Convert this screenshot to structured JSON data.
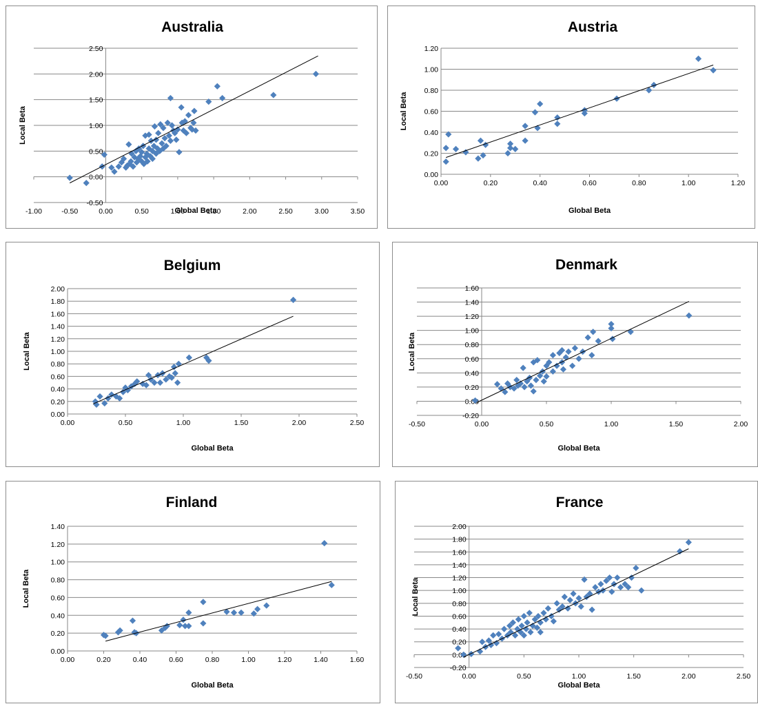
{
  "marker_color": "#4f81bd",
  "chart_data": [
    {
      "type": "scatter",
      "title": "Australia",
      "xlabel": "Global Beta",
      "ylabel": "Local Beta",
      "xlim": [
        -1.0,
        3.5
      ],
      "ylim": [
        -0.5,
        2.5
      ],
      "x_ticks": [
        "-1.00",
        "-0.50",
        "0.00",
        "0.50",
        "1.00",
        "1.50",
        "2.00",
        "2.50",
        "3.00",
        "3.50"
      ],
      "y_ticks": [
        "-0.50",
        "0.00",
        "0.50",
        "1.00",
        "1.50",
        "2.00",
        "2.50"
      ],
      "trendline": [
        [
          -0.5,
          -0.12
        ],
        [
          2.95,
          2.35
        ]
      ],
      "points": [
        [
          -0.5,
          -0.02
        ],
        [
          -0.27,
          -0.12
        ],
        [
          -0.05,
          0.2
        ],
        [
          -0.02,
          0.43
        ],
        [
          0.08,
          0.18
        ],
        [
          0.12,
          0.1
        ],
        [
          0.18,
          0.2
        ],
        [
          0.22,
          0.28
        ],
        [
          0.25,
          0.35
        ],
        [
          0.28,
          0.18
        ],
        [
          0.3,
          0.22
        ],
        [
          0.32,
          0.63
        ],
        [
          0.33,
          0.25
        ],
        [
          0.35,
          0.3
        ],
        [
          0.36,
          0.45
        ],
        [
          0.38,
          0.2
        ],
        [
          0.4,
          0.38
        ],
        [
          0.42,
          0.5
        ],
        [
          0.43,
          0.28
        ],
        [
          0.45,
          0.35
        ],
        [
          0.46,
          0.55
        ],
        [
          0.48,
          0.4
        ],
        [
          0.5,
          0.3
        ],
        [
          0.5,
          0.48
        ],
        [
          0.52,
          0.6
        ],
        [
          0.53,
          0.25
        ],
        [
          0.55,
          0.38
        ],
        [
          0.55,
          0.8
        ],
        [
          0.57,
          0.45
        ],
        [
          0.58,
          0.3
        ],
        [
          0.6,
          0.55
        ],
        [
          0.6,
          0.82
        ],
        [
          0.62,
          0.4
        ],
        [
          0.63,
          0.7
        ],
        [
          0.65,
          0.5
        ],
        [
          0.65,
          0.35
        ],
        [
          0.67,
          0.6
        ],
        [
          0.68,
          0.98
        ],
        [
          0.7,
          0.45
        ],
        [
          0.7,
          0.72
        ],
        [
          0.72,
          0.55
        ],
        [
          0.73,
          0.85
        ],
        [
          0.75,
          0.5
        ],
        [
          0.76,
          1.02
        ],
        [
          0.78,
          0.65
        ],
        [
          0.8,
          0.95
        ],
        [
          0.8,
          0.55
        ],
        [
          0.82,
          0.75
        ],
        [
          0.84,
          0.6
        ],
        [
          0.86,
          1.05
        ],
        [
          0.88,
          0.8
        ],
        [
          0.9,
          0.7
        ],
        [
          0.9,
          1.53
        ],
        [
          0.92,
          1.0
        ],
        [
          0.94,
          0.9
        ],
        [
          0.96,
          0.85
        ],
        [
          0.98,
          0.72
        ],
        [
          1.0,
          0.92
        ],
        [
          1.02,
          0.48
        ],
        [
          1.05,
          1.35
        ],
        [
          1.06,
          1.05
        ],
        [
          1.08,
          0.9
        ],
        [
          1.1,
          1.08
        ],
        [
          1.12,
          0.85
        ],
        [
          1.15,
          1.2
        ],
        [
          1.18,
          0.95
        ],
        [
          1.2,
          0.92
        ],
        [
          1.22,
          1.05
        ],
        [
          1.23,
          1.28
        ],
        [
          1.25,
          0.9
        ],
        [
          1.43,
          1.46
        ],
        [
          1.55,
          1.76
        ],
        [
          1.62,
          1.53
        ],
        [
          2.33,
          1.59
        ],
        [
          2.92,
          2.0
        ]
      ]
    },
    {
      "type": "scatter",
      "title": "Austria",
      "xlabel": "Global Beta",
      "ylabel": "Local Beta",
      "xlim": [
        0.0,
        1.2
      ],
      "ylim": [
        0.0,
        1.2
      ],
      "x_ticks": [
        "0.00",
        "0.20",
        "0.40",
        "0.60",
        "0.80",
        "1.00",
        "1.20"
      ],
      "y_ticks": [
        "0.00",
        "0.20",
        "0.40",
        "0.60",
        "0.80",
        "1.00",
        "1.20"
      ],
      "trendline": [
        [
          0.02,
          0.16
        ],
        [
          1.1,
          1.04
        ]
      ],
      "points": [
        [
          0.02,
          0.12
        ],
        [
          0.02,
          0.25
        ],
        [
          0.03,
          0.38
        ],
        [
          0.06,
          0.24
        ],
        [
          0.1,
          0.21
        ],
        [
          0.15,
          0.15
        ],
        [
          0.16,
          0.32
        ],
        [
          0.17,
          0.18
        ],
        [
          0.18,
          0.28
        ],
        [
          0.27,
          0.2
        ],
        [
          0.28,
          0.25
        ],
        [
          0.28,
          0.29
        ],
        [
          0.3,
          0.24
        ],
        [
          0.34,
          0.32
        ],
        [
          0.34,
          0.46
        ],
        [
          0.38,
          0.59
        ],
        [
          0.39,
          0.44
        ],
        [
          0.4,
          0.67
        ],
        [
          0.47,
          0.48
        ],
        [
          0.47,
          0.54
        ],
        [
          0.58,
          0.58
        ],
        [
          0.58,
          0.61
        ],
        [
          0.71,
          0.72
        ],
        [
          0.84,
          0.8
        ],
        [
          0.86,
          0.85
        ],
        [
          1.04,
          1.1
        ],
        [
          1.1,
          0.99
        ]
      ]
    },
    {
      "type": "scatter",
      "title": "Belgium",
      "xlabel": "Global Beta",
      "ylabel": "Local Beta",
      "xlim": [
        0.0,
        2.5
      ],
      "ylim": [
        0.0,
        2.0
      ],
      "x_ticks": [
        "0.00",
        "0.50",
        "1.00",
        "1.50",
        "2.00",
        "2.50"
      ],
      "y_ticks": [
        "0.00",
        "0.20",
        "0.40",
        "0.60",
        "0.80",
        "1.00",
        "1.20",
        "1.40",
        "1.60",
        "1.80",
        "2.00"
      ],
      "trendline": [
        [
          0.22,
          0.16
        ],
        [
          1.95,
          1.56
        ]
      ],
      "points": [
        [
          0.24,
          0.2
        ],
        [
          0.25,
          0.15
        ],
        [
          0.28,
          0.28
        ],
        [
          0.32,
          0.17
        ],
        [
          0.35,
          0.25
        ],
        [
          0.38,
          0.31
        ],
        [
          0.42,
          0.28
        ],
        [
          0.45,
          0.25
        ],
        [
          0.48,
          0.35
        ],
        [
          0.5,
          0.42
        ],
        [
          0.52,
          0.38
        ],
        [
          0.55,
          0.44
        ],
        [
          0.58,
          0.48
        ],
        [
          0.6,
          0.52
        ],
        [
          0.65,
          0.48
        ],
        [
          0.68,
          0.46
        ],
        [
          0.7,
          0.62
        ],
        [
          0.72,
          0.55
        ],
        [
          0.75,
          0.5
        ],
        [
          0.78,
          0.62
        ],
        [
          0.8,
          0.5
        ],
        [
          0.82,
          0.65
        ],
        [
          0.85,
          0.55
        ],
        [
          0.88,
          0.6
        ],
        [
          0.9,
          0.58
        ],
        [
          0.92,
          0.75
        ],
        [
          0.93,
          0.65
        ],
        [
          0.95,
          0.5
        ],
        [
          0.96,
          0.8
        ],
        [
          1.05,
          0.9
        ],
        [
          1.2,
          0.9
        ],
        [
          1.22,
          0.85
        ],
        [
          1.95,
          1.82
        ]
      ]
    },
    {
      "type": "scatter",
      "title": "Denmark",
      "xlabel": "Global Beta",
      "ylabel": "Local Beta",
      "xlim": [
        -0.5,
        2.0
      ],
      "ylim": [
        -0.2,
        1.6
      ],
      "x_ticks": [
        "-0.50",
        "0.00",
        "0.50",
        "1.00",
        "1.50",
        "2.00"
      ],
      "y_ticks": [
        "-0.20",
        "0.00",
        "0.20",
        "0.40",
        "0.60",
        "0.80",
        "1.00",
        "1.20",
        "1.40",
        "1.60"
      ],
      "trendline": [
        [
          -0.04,
          -0.02
        ],
        [
          1.6,
          1.41
        ]
      ],
      "points": [
        [
          -0.05,
          0.01
        ],
        [
          0.12,
          0.24
        ],
        [
          0.15,
          0.18
        ],
        [
          0.18,
          0.13
        ],
        [
          0.2,
          0.25
        ],
        [
          0.22,
          0.2
        ],
        [
          0.25,
          0.18
        ],
        [
          0.27,
          0.3
        ],
        [
          0.28,
          0.22
        ],
        [
          0.3,
          0.25
        ],
        [
          0.32,
          0.47
        ],
        [
          0.33,
          0.2
        ],
        [
          0.35,
          0.28
        ],
        [
          0.37,
          0.33
        ],
        [
          0.38,
          0.22
        ],
        [
          0.4,
          0.14
        ],
        [
          0.4,
          0.55
        ],
        [
          0.42,
          0.3
        ],
        [
          0.43,
          0.58
        ],
        [
          0.45,
          0.36
        ],
        [
          0.47,
          0.42
        ],
        [
          0.48,
          0.28
        ],
        [
          0.5,
          0.5
        ],
        [
          0.5,
          0.35
        ],
        [
          0.52,
          0.55
        ],
        [
          0.55,
          0.42
        ],
        [
          0.55,
          0.65
        ],
        [
          0.58,
          0.5
        ],
        [
          0.6,
          0.68
        ],
        [
          0.62,
          0.55
        ],
        [
          0.62,
          0.72
        ],
        [
          0.63,
          0.45
        ],
        [
          0.65,
          0.62
        ],
        [
          0.67,
          0.7
        ],
        [
          0.7,
          0.5
        ],
        [
          0.72,
          0.75
        ],
        [
          0.75,
          0.6
        ],
        [
          0.78,
          0.7
        ],
        [
          0.82,
          0.9
        ],
        [
          0.85,
          0.65
        ],
        [
          0.86,
          0.98
        ],
        [
          0.9,
          0.85
        ],
        [
          1.0,
          1.03
        ],
        [
          1.0,
          1.09
        ],
        [
          1.01,
          0.88
        ],
        [
          1.15,
          0.98
        ],
        [
          1.6,
          1.21
        ]
      ]
    },
    {
      "type": "scatter",
      "title": "Finland",
      "xlabel": "Global Beta",
      "ylabel": "Local Beta",
      "xlim": [
        0.0,
        1.6
      ],
      "ylim": [
        0.0,
        1.4
      ],
      "x_ticks": [
        "0.00",
        "0.20",
        "0.40",
        "0.60",
        "0.80",
        "1.00",
        "1.20",
        "1.40",
        "1.60"
      ],
      "y_ticks": [
        "0.00",
        "0.20",
        "0.40",
        "0.60",
        "0.80",
        "1.00",
        "1.20",
        "1.40"
      ],
      "trendline": [
        [
          0.21,
          0.11
        ],
        [
          1.46,
          0.78
        ]
      ],
      "points": [
        [
          0.2,
          0.18
        ],
        [
          0.21,
          0.17
        ],
        [
          0.28,
          0.21
        ],
        [
          0.29,
          0.23
        ],
        [
          0.36,
          0.34
        ],
        [
          0.37,
          0.21
        ],
        [
          0.38,
          0.2
        ],
        [
          0.52,
          0.23
        ],
        [
          0.54,
          0.26
        ],
        [
          0.55,
          0.28
        ],
        [
          0.62,
          0.29
        ],
        [
          0.64,
          0.35
        ],
        [
          0.65,
          0.28
        ],
        [
          0.67,
          0.43
        ],
        [
          0.67,
          0.28
        ],
        [
          0.75,
          0.55
        ],
        [
          0.75,
          0.31
        ],
        [
          0.88,
          0.44
        ],
        [
          0.92,
          0.43
        ],
        [
          0.96,
          0.43
        ],
        [
          1.03,
          0.42
        ],
        [
          1.05,
          0.47
        ],
        [
          1.1,
          0.51
        ],
        [
          1.42,
          1.21
        ],
        [
          1.46,
          0.74
        ]
      ]
    },
    {
      "type": "scatter",
      "title": "France",
      "xlabel": "Global Beta",
      "ylabel": "Local Beta",
      "xlim": [
        -0.5,
        2.5
      ],
      "ylim": [
        -0.2,
        2.0
      ],
      "x_ticks": [
        "-0.50",
        "0.00",
        "0.50",
        "1.00",
        "1.50",
        "2.00",
        "2.50"
      ],
      "y_ticks": [
        "-0.20",
        "0.00",
        "0.20",
        "0.40",
        "0.60",
        "0.80",
        "1.00",
        "1.20",
        "1.40",
        "1.60",
        "1.80",
        "2.00"
      ],
      "trendline": [
        [
          -0.05,
          -0.04
        ],
        [
          2.0,
          1.65
        ]
      ],
      "points": [
        [
          -0.1,
          0.1
        ],
        [
          -0.05,
          0.0
        ],
        [
          0.02,
          0.01
        ],
        [
          0.1,
          0.05
        ],
        [
          0.12,
          0.2
        ],
        [
          0.15,
          0.12
        ],
        [
          0.18,
          0.22
        ],
        [
          0.2,
          0.15
        ],
        [
          0.22,
          0.3
        ],
        [
          0.25,
          0.18
        ],
        [
          0.27,
          0.32
        ],
        [
          0.3,
          0.25
        ],
        [
          0.32,
          0.4
        ],
        [
          0.35,
          0.3
        ],
        [
          0.37,
          0.45
        ],
        [
          0.38,
          0.35
        ],
        [
          0.4,
          0.5
        ],
        [
          0.42,
          0.3
        ],
        [
          0.44,
          0.4
        ],
        [
          0.45,
          0.55
        ],
        [
          0.47,
          0.35
        ],
        [
          0.48,
          0.45
        ],
        [
          0.5,
          0.6
        ],
        [
          0.5,
          0.3
        ],
        [
          0.52,
          0.4
        ],
        [
          0.53,
          0.5
        ],
        [
          0.55,
          0.65
        ],
        [
          0.56,
          0.35
        ],
        [
          0.58,
          0.45
        ],
        [
          0.6,
          0.55
        ],
        [
          0.62,
          0.42
        ],
        [
          0.63,
          0.6
        ],
        [
          0.65,
          0.35
        ],
        [
          0.65,
          0.5
        ],
        [
          0.68,
          0.65
        ],
        [
          0.7,
          0.55
        ],
        [
          0.72,
          0.72
        ],
        [
          0.75,
          0.6
        ],
        [
          0.77,
          0.52
        ],
        [
          0.8,
          0.8
        ],
        [
          0.82,
          0.7
        ],
        [
          0.85,
          0.75
        ],
        [
          0.87,
          0.9
        ],
        [
          0.9,
          0.72
        ],
        [
          0.92,
          0.85
        ],
        [
          0.95,
          0.95
        ],
        [
          0.97,
          0.8
        ],
        [
          1.0,
          0.88
        ],
        [
          1.02,
          0.75
        ],
        [
          1.05,
          1.17
        ],
        [
          1.07,
          0.9
        ],
        [
          1.1,
          0.95
        ],
        [
          1.12,
          0.7
        ],
        [
          1.15,
          1.05
        ],
        [
          1.18,
          0.98
        ],
        [
          1.2,
          1.1
        ],
        [
          1.22,
          1.0
        ],
        [
          1.25,
          1.15
        ],
        [
          1.28,
          1.2
        ],
        [
          1.3,
          0.98
        ],
        [
          1.32,
          1.1
        ],
        [
          1.35,
          1.2
        ],
        [
          1.38,
          1.05
        ],
        [
          1.42,
          1.1
        ],
        [
          1.45,
          1.05
        ],
        [
          1.48,
          1.2
        ],
        [
          1.52,
          1.35
        ],
        [
          1.57,
          1.0
        ],
        [
          1.92,
          1.61
        ],
        [
          2.0,
          1.75
        ]
      ]
    }
  ]
}
